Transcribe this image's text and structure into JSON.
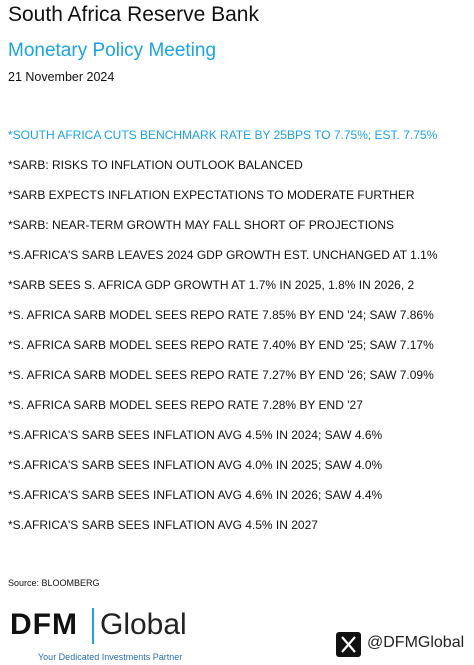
{
  "header": {
    "title": "South Africa Reserve Bank",
    "subtitle": "Monetary Policy Meeting",
    "date": "21 November 2024"
  },
  "headlines": [
    "*SOUTH AFRICA CUTS BENCHMARK RATE BY 25BPS TO 7.75%; EST. 7.75%",
    "*SARB: RISKS TO INFLATION OUTLOOK BALANCED",
    "*SARB EXPECTS INFLATION EXPECTATIONS TO MODERATE FURTHER",
    "*SARB: NEAR-TERM GROWTH MAY FALL SHORT OF PROJECTIONS",
    "*S.AFRICA'S SARB LEAVES 2024 GDP GROWTH EST. UNCHANGED AT 1.1%",
    "*SARB SEES S. AFRICA GDP GROWTH AT 1.7% IN 2025, 1.8% IN 2026, 2",
    "*S. AFRICA SARB MODEL SEES REPO RATE 7.85% BY END '24; SAW 7.86%",
    "*S. AFRICA SARB MODEL SEES REPO RATE 7.40% BY END '25; SAW 7.17%",
    "*S. AFRICA SARB MODEL SEES REPO RATE 7.27% BY END '26; SAW 7.09%",
    "*S. AFRICA SARB MODEL SEES REPO RATE 7.28% BY END '27",
    "*S.AFRICA'S SARB SEES INFLATION AVG 4.5% IN 2024; SAW 4.6%",
    "*S.AFRICA'S SARB SEES INFLATION AVG 4.0% IN 2025; SAW 4.0%",
    "*S.AFRICA'S SARB SEES INFLATION AVG 4.6% IN 2026; SAW 4.4%",
    "*S.AFRICA'S SARB SEES INFLATION AVG 4.5% IN 2027"
  ],
  "source": "Source: BLOOMBERG",
  "footer": {
    "logo_left": "DFM",
    "logo_right": "Global",
    "tagline": "Your Dedicated Investments Partner",
    "handle": "@DFMGlobal"
  }
}
